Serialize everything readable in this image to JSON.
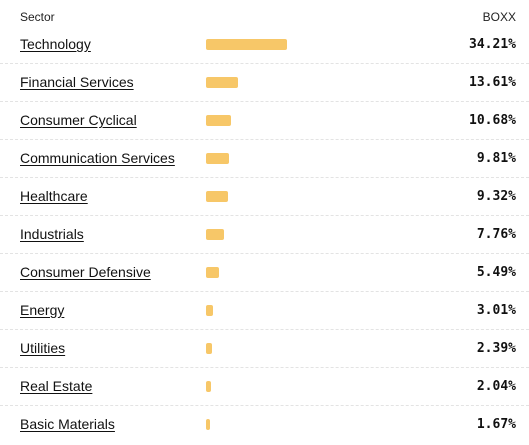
{
  "header": {
    "sector_label": "Sector",
    "ticker": "BOXX"
  },
  "colors": {
    "bar": "#f7c768",
    "divider": "#e3e3e3"
  },
  "rows": [
    {
      "sector": "Technology",
      "pct": "34.21%",
      "value": 34.21
    },
    {
      "sector": "Financial Services",
      "pct": "13.61%",
      "value": 13.61
    },
    {
      "sector": "Consumer Cyclical",
      "pct": "10.68%",
      "value": 10.68
    },
    {
      "sector": "Communication Services",
      "pct": "9.81%",
      "value": 9.81
    },
    {
      "sector": "Healthcare",
      "pct": "9.32%",
      "value": 9.32
    },
    {
      "sector": "Industrials",
      "pct": "7.76%",
      "value": 7.76
    },
    {
      "sector": "Consumer Defensive",
      "pct": "5.49%",
      "value": 5.49
    },
    {
      "sector": "Energy",
      "pct": "3.01%",
      "value": 3.01
    },
    {
      "sector": "Utilities",
      "pct": "2.39%",
      "value": 2.39
    },
    {
      "sector": "Real Estate",
      "pct": "2.04%",
      "value": 2.04
    },
    {
      "sector": "Basic Materials",
      "pct": "1.67%",
      "value": 1.67
    }
  ]
}
